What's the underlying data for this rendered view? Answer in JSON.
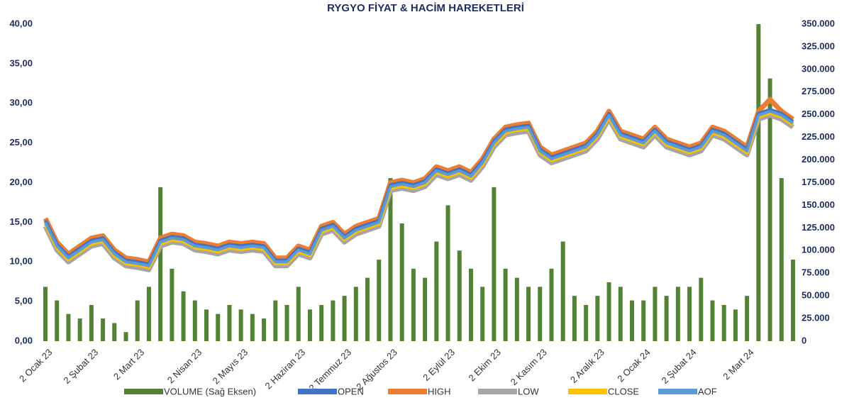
{
  "chart_data": {
    "type": "line",
    "title": "RYGYO FİYAT & HACİM HAREKETLERİ",
    "categories": [
      "2 Ocak 23",
      null,
      null,
      null,
      "2 Şubat 23",
      null,
      null,
      null,
      "2 Mart 23",
      null,
      null,
      null,
      null,
      "2 Nisan 23",
      null,
      null,
      null,
      "2 Mayıs 23",
      null,
      null,
      null,
      null,
      "2 Haziran 23",
      null,
      null,
      null,
      "2 Temmuz 23",
      null,
      null,
      null,
      "2 Ağustos 23",
      null,
      null,
      null,
      null,
      "2 Eylül 23",
      null,
      null,
      null,
      "2 Ekim 23",
      null,
      null,
      null,
      "2 Kasım 23",
      null,
      null,
      null,
      null,
      "2 Aralık 23",
      null,
      null,
      null,
      "2 Ocak 24",
      null,
      null,
      null,
      "2 Şubat 24",
      null,
      null,
      null,
      null,
      "2 Mart 24",
      null,
      null,
      null,
      null
    ],
    "series": [
      {
        "name": "VOLUME (Sağ Eksen)",
        "type": "bar",
        "axis": "y2",
        "color": "#548235",
        "values": [
          60000,
          45000,
          30000,
          25000,
          40000,
          25000,
          20000,
          10000,
          45000,
          60000,
          170000,
          80000,
          55000,
          45000,
          35000,
          30000,
          40000,
          35000,
          30000,
          25000,
          45000,
          40000,
          60000,
          35000,
          40000,
          45000,
          50000,
          60000,
          70000,
          90000,
          180000,
          130000,
          80000,
          70000,
          110000,
          150000,
          100000,
          80000,
          60000,
          170000,
          80000,
          70000,
          60000,
          60000,
          80000,
          110000,
          50000,
          40000,
          50000,
          65000,
          60000,
          45000,
          45000,
          60000,
          50000,
          60000,
          60000,
          70000,
          45000,
          40000,
          35000,
          50000,
          350000,
          290000,
          180000,
          90000
        ]
      },
      {
        "name": "OPEN",
        "color": "#4472c4",
        "values": [
          15.2,
          12.2,
          10.7,
          11.7,
          12.7,
          13.0,
          11.2,
          10.2,
          10.0,
          9.7,
          12.7,
          13.2,
          13.0,
          12.2,
          12.0,
          11.7,
          12.2,
          12.0,
          12.2,
          12.0,
          10.2,
          10.2,
          11.7,
          11.2,
          14.2,
          14.7,
          13.2,
          14.2,
          14.7,
          15.2,
          19.7,
          20.0,
          19.7,
          20.2,
          21.7,
          21.2,
          21.7,
          21.0,
          22.7,
          25.2,
          26.7,
          27.0,
          27.2,
          24.2,
          23.2,
          23.7,
          24.2,
          24.7,
          26.2,
          28.7,
          26.2,
          25.7,
          25.2,
          26.7,
          25.2,
          24.7,
          24.2,
          24.7,
          26.7,
          26.2,
          25.2,
          24.2,
          28.7,
          29.2,
          28.7,
          27.7
        ]
      },
      {
        "name": "HIGH",
        "color": "#ed7d31",
        "values": [
          15.5,
          12.5,
          11.0,
          12.0,
          13.0,
          13.3,
          11.5,
          10.5,
          10.3,
          10.0,
          13.0,
          13.5,
          13.3,
          12.5,
          12.3,
          12.0,
          12.5,
          12.3,
          12.5,
          12.3,
          10.5,
          10.5,
          12.0,
          11.5,
          14.5,
          15.0,
          13.5,
          14.5,
          15.0,
          15.5,
          20.0,
          20.3,
          20.0,
          20.5,
          22.0,
          21.5,
          22.0,
          21.3,
          23.0,
          25.5,
          27.0,
          27.3,
          27.5,
          24.5,
          23.5,
          24.0,
          24.5,
          25.0,
          26.5,
          29.0,
          26.5,
          26.0,
          25.5,
          27.0,
          25.5,
          25.0,
          24.5,
          25.0,
          27.0,
          26.5,
          25.5,
          24.5,
          29.0,
          30.5,
          29.0,
          28.0
        ]
      },
      {
        "name": "LOW",
        "color": "#a5a5a5",
        "values": [
          14.5,
          11.5,
          10.0,
          11.0,
          12.0,
          12.3,
          10.5,
          9.5,
          9.3,
          9.0,
          12.0,
          12.5,
          12.3,
          11.5,
          11.3,
          11.0,
          11.5,
          11.3,
          11.5,
          11.3,
          9.5,
          9.5,
          11.0,
          10.5,
          13.5,
          14.0,
          12.5,
          13.5,
          14.0,
          14.5,
          19.0,
          19.3,
          19.0,
          19.5,
          21.0,
          20.5,
          21.0,
          20.3,
          22.0,
          24.5,
          26.0,
          26.3,
          26.5,
          23.5,
          22.5,
          23.0,
          23.5,
          24.0,
          25.5,
          28.0,
          25.5,
          25.0,
          24.5,
          26.0,
          24.5,
          24.0,
          23.5,
          24.0,
          26.0,
          25.5,
          24.5,
          23.5,
          28.0,
          28.5,
          28.0,
          27.0
        ]
      },
      {
        "name": "CLOSE",
        "color": "#ffc000",
        "values": [
          14.8,
          11.8,
          10.3,
          11.3,
          12.3,
          12.6,
          10.8,
          9.8,
          9.6,
          9.3,
          12.3,
          12.8,
          12.6,
          11.8,
          11.6,
          11.3,
          11.8,
          11.6,
          11.8,
          11.6,
          9.8,
          9.8,
          11.3,
          10.8,
          13.8,
          14.3,
          12.8,
          13.8,
          14.3,
          14.8,
          19.3,
          19.6,
          19.3,
          19.8,
          21.3,
          20.8,
          21.3,
          20.6,
          22.3,
          24.8,
          26.3,
          26.6,
          26.8,
          23.8,
          22.8,
          23.3,
          23.8,
          24.3,
          25.8,
          28.3,
          25.8,
          25.3,
          24.8,
          26.3,
          24.8,
          24.3,
          23.8,
          24.3,
          26.3,
          25.8,
          24.8,
          23.8,
          28.3,
          28.8,
          28.3,
          27.3
        ]
      },
      {
        "name": "AOF",
        "color": "#5b9bd5",
        "values": [
          15.0,
          12.0,
          10.5,
          11.5,
          12.5,
          12.8,
          11.0,
          10.0,
          9.8,
          9.5,
          12.5,
          13.0,
          12.8,
          12.0,
          11.8,
          11.5,
          12.0,
          11.8,
          12.0,
          11.8,
          10.0,
          10.0,
          11.5,
          11.0,
          14.0,
          14.5,
          13.0,
          14.0,
          14.5,
          15.0,
          19.5,
          19.8,
          19.5,
          20.0,
          21.5,
          21.0,
          21.5,
          20.8,
          22.5,
          25.0,
          26.5,
          26.8,
          27.0,
          24.0,
          23.0,
          23.5,
          24.0,
          24.5,
          26.0,
          28.5,
          26.0,
          25.5,
          25.0,
          26.5,
          25.0,
          24.5,
          24.0,
          24.5,
          26.5,
          26.0,
          25.0,
          24.0,
          28.5,
          29.0,
          28.5,
          27.5
        ]
      }
    ],
    "ylim": [
      0,
      40
    ],
    "yticks": [
      {
        "value": 0,
        "label": "0,00"
      },
      {
        "value": 5,
        "label": "5,00"
      },
      {
        "value": 10,
        "label": "10,00"
      },
      {
        "value": 15,
        "label": "15,00"
      },
      {
        "value": 20,
        "label": "20,00"
      },
      {
        "value": 25,
        "label": "25,00"
      },
      {
        "value": 30,
        "label": "30,00"
      },
      {
        "value": 35,
        "label": "35,00"
      },
      {
        "value": 40,
        "label": "40,00"
      }
    ],
    "y2lim": [
      0,
      350000
    ],
    "y2ticks": [
      {
        "value": 0,
        "label": "0"
      },
      {
        "value": 25000,
        "label": "25.000"
      },
      {
        "value": 50000,
        "label": "50.000"
      },
      {
        "value": 75000,
        "label": "75.000"
      },
      {
        "value": 100000,
        "label": "100.000"
      },
      {
        "value": 125000,
        "label": "125.000"
      },
      {
        "value": 150000,
        "label": "150.000"
      },
      {
        "value": 175000,
        "label": "175.000"
      },
      {
        "value": 200000,
        "label": "200.000"
      },
      {
        "value": 225000,
        "label": "225.000"
      },
      {
        "value": 250000,
        "label": "250.000"
      },
      {
        "value": 275000,
        "label": "275.000"
      },
      {
        "value": 300000,
        "label": "300.000"
      },
      {
        "value": 325000,
        "label": "325.000"
      },
      {
        "value": 350000,
        "label": "350.000"
      }
    ]
  }
}
